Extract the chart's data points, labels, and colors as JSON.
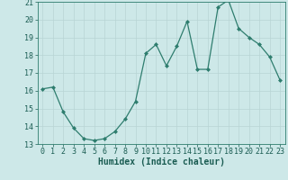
{
  "x": [
    0,
    1,
    2,
    3,
    4,
    5,
    6,
    7,
    8,
    9,
    10,
    11,
    12,
    13,
    14,
    15,
    16,
    17,
    18,
    19,
    20,
    21,
    22,
    23
  ],
  "y": [
    16.1,
    16.2,
    14.8,
    13.9,
    13.3,
    13.2,
    13.3,
    13.7,
    14.4,
    15.4,
    18.1,
    18.6,
    17.4,
    18.5,
    19.9,
    17.2,
    17.2,
    20.7,
    21.1,
    19.5,
    19.0,
    18.6,
    17.9,
    16.6
  ],
  "xlabel": "Humidex (Indice chaleur)",
  "ylim": [
    13,
    21
  ],
  "xlim": [
    -0.5,
    23.5
  ],
  "yticks": [
    13,
    14,
    15,
    16,
    17,
    18,
    19,
    20,
    21
  ],
  "xticks": [
    0,
    1,
    2,
    3,
    4,
    5,
    6,
    7,
    8,
    9,
    10,
    11,
    12,
    13,
    14,
    15,
    16,
    17,
    18,
    19,
    20,
    21,
    22,
    23
  ],
  "line_color": "#2e7d6e",
  "marker_color": "#2e7d6e",
  "bg_color": "#cde8e8",
  "grid_color": "#b8d4d4",
  "axis_color": "#2e7d6e",
  "label_color": "#1a5c52",
  "tick_color": "#1a5c52",
  "font_size": 6,
  "xlabel_fontsize": 7
}
